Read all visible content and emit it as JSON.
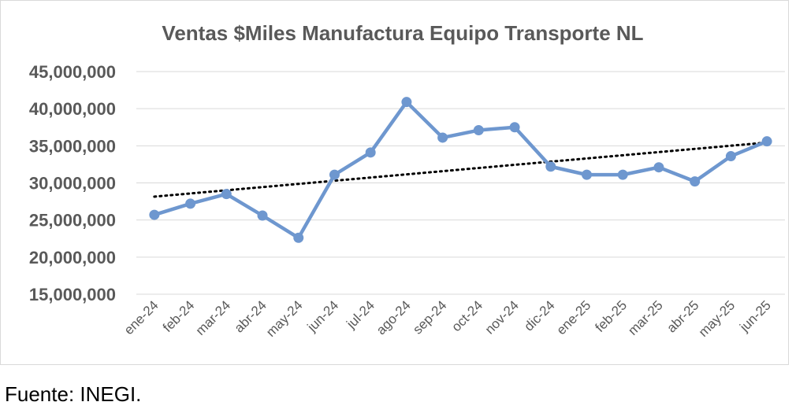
{
  "chart_data": {
    "type": "line",
    "title": "Ventas $Miles Manufactura Equipo Transporte NL",
    "xlabel": "",
    "ylabel": "",
    "categories": [
      "ene-24",
      "feb-24",
      "mar-24",
      "abr-24",
      "may-24",
      "jun-24",
      "jul-24",
      "ago-24",
      "sep-24",
      "oct-24",
      "nov-24",
      "dic-24",
      "ene-25",
      "feb-25",
      "mar-25",
      "abr-25",
      "may-25",
      "jun-25"
    ],
    "series": [
      {
        "values": [
          25700000,
          27200000,
          28500000,
          25600000,
          22600000,
          31100000,
          34100000,
          40900000,
          36100000,
          37100000,
          37500000,
          32200000,
          31100000,
          31100000,
          32100000,
          30200000,
          33600000,
          35600000
        ],
        "color": "#6e97cf",
        "line": "solid",
        "markers": true
      }
    ],
    "trendline": {
      "type": "linear",
      "style": "dotted",
      "color": "#000000"
    },
    "ylim": [
      15000000,
      45000000
    ],
    "yticks": [
      "15,000,000",
      "20,000,000",
      "25,000,000",
      "30,000,000",
      "35,000,000",
      "40,000,000",
      "45,000,000"
    ],
    "grid": true,
    "legend": "none"
  },
  "source": "Fuente: INEGI."
}
